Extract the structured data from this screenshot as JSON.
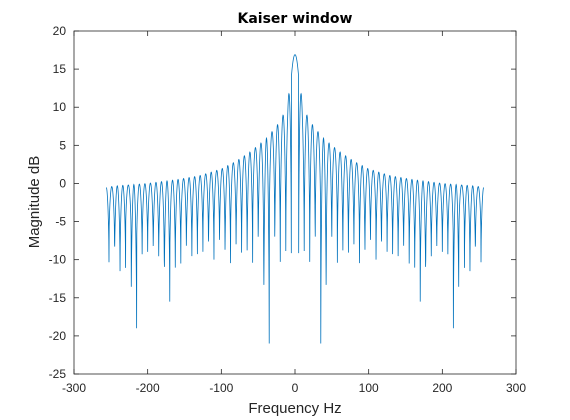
{
  "chart_data": {
    "type": "line",
    "title": "Kaiser window",
    "xlabel": "Frequency Hz",
    "ylabel": "Magnitude dB",
    "xlim": [
      -300,
      300
    ],
    "ylim": [
      -25,
      20
    ],
    "xticks": [
      -300,
      -200,
      -100,
      0,
      100,
      200,
      300
    ],
    "yticks": [
      -25,
      -20,
      -15,
      -10,
      -5,
      0,
      5,
      10,
      15,
      20
    ],
    "grid": false,
    "line_color": "#0072bd",
    "series": [
      {
        "description": "Magnitude response of a Kaiser-windowed sequence, symmetric about 0 Hz",
        "x_range": [
          -256,
          256
        ],
        "main_lobe_peak": {
          "x": 0,
          "y": 16.9
        },
        "ripple_spacing_hz": 7.5,
        "sidelobe_envelope": [
          {
            "x": 5,
            "y": 15.8
          },
          {
            "x": 10,
            "y": 10
          },
          {
            "x": 25,
            "y": 7.5
          },
          {
            "x": 40,
            "y": 5.8
          },
          {
            "x": 60,
            "y": 4.2
          },
          {
            "x": 80,
            "y": 2.9
          },
          {
            "x": 100,
            "y": 1.9
          },
          {
            "x": 130,
            "y": 1.0
          },
          {
            "x": 160,
            "y": 0.5
          },
          {
            "x": 200,
            "y": 0.0
          },
          {
            "x": 240,
            "y": -0.3
          },
          {
            "x": 256,
            "y": -0.5
          }
        ],
        "deep_nulls": [
          {
            "x": 2.5,
            "y": 0.5
          },
          {
            "x": 42,
            "y": -21
          },
          {
            "x": 80,
            "y": -13
          },
          {
            "x": 115,
            "y": -10
          },
          {
            "x": 160,
            "y": -10.5
          },
          {
            "x": 175,
            "y": -15.5
          },
          {
            "x": 216,
            "y": -19
          },
          {
            "x": 244,
            "y": -11.5
          }
        ],
        "typical_null_depth": -9
      }
    ]
  }
}
